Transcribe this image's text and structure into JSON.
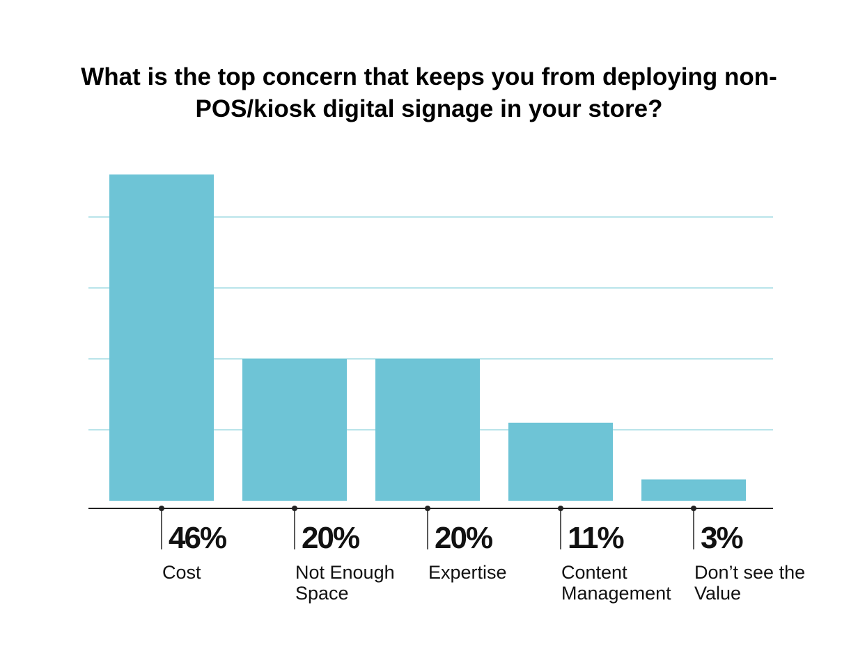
{
  "chart_data": {
    "type": "bar",
    "title": "What is the top concern that keeps you from deploying non-POS/kiosk digital signage in your store?",
    "categories": [
      "Cost",
      "Not Enough Space",
      "Expertise",
      "Content Management",
      "Don’t see the Value"
    ],
    "values": [
      46,
      20,
      20,
      11,
      3
    ],
    "value_labels": [
      "46%",
      "20%",
      "20%",
      "11%",
      "3%"
    ],
    "color": "#6ec4d6",
    "ylim": [
      0,
      50
    ],
    "yticks": [
      10,
      20,
      30,
      40
    ],
    "grid": true
  }
}
